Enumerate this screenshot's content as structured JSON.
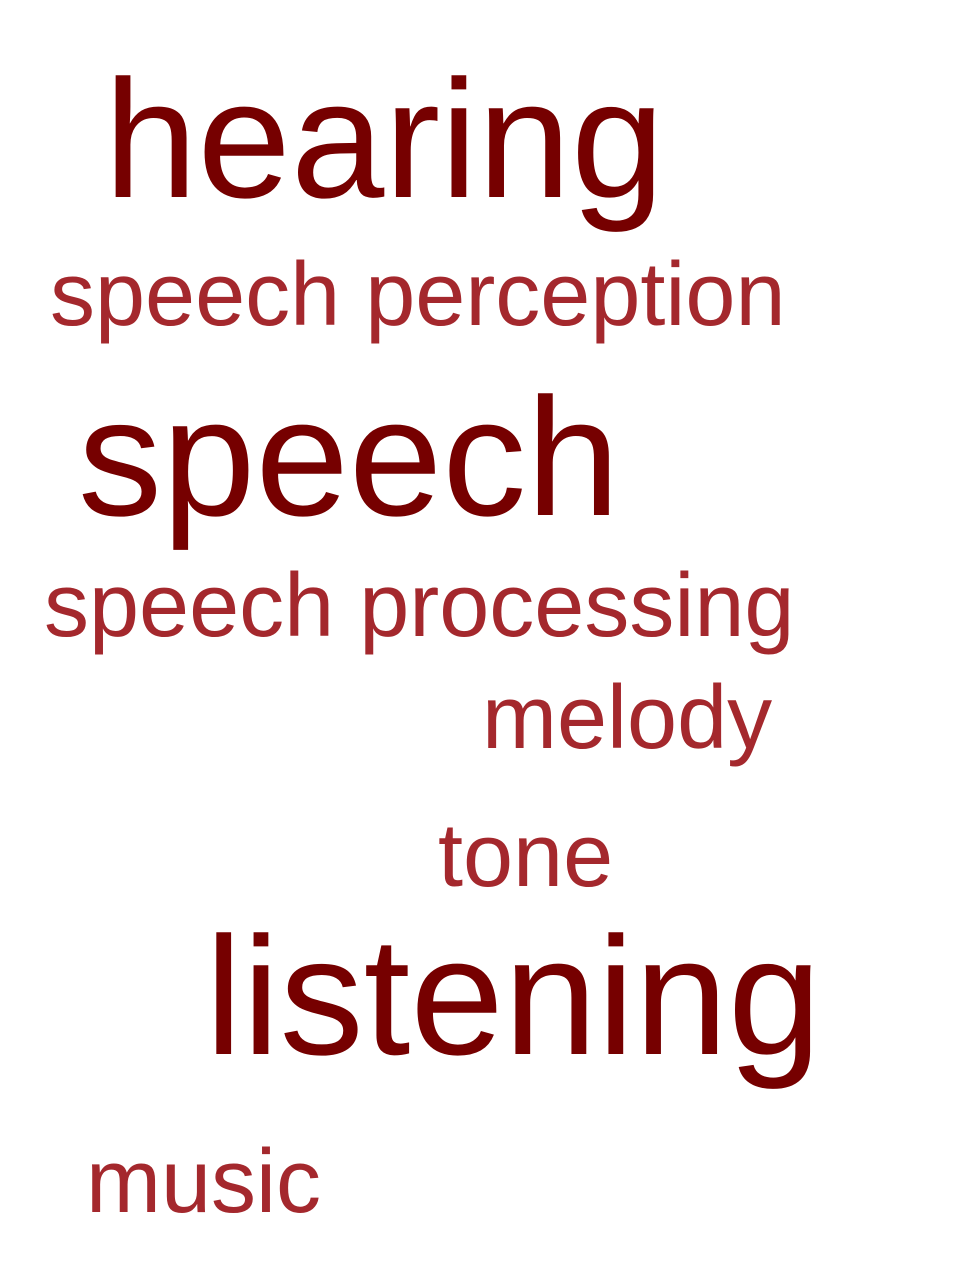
{
  "words": {
    "hearing": "hearing",
    "speech_perception": "speech perception",
    "speech": "speech",
    "speech_processing": "speech processing",
    "melody": "melody",
    "tone": "tone",
    "listening": "listening",
    "music": "music"
  },
  "colors": {
    "primary": "#760000",
    "secondary": "#a4282d",
    "background": "#ffffff"
  }
}
